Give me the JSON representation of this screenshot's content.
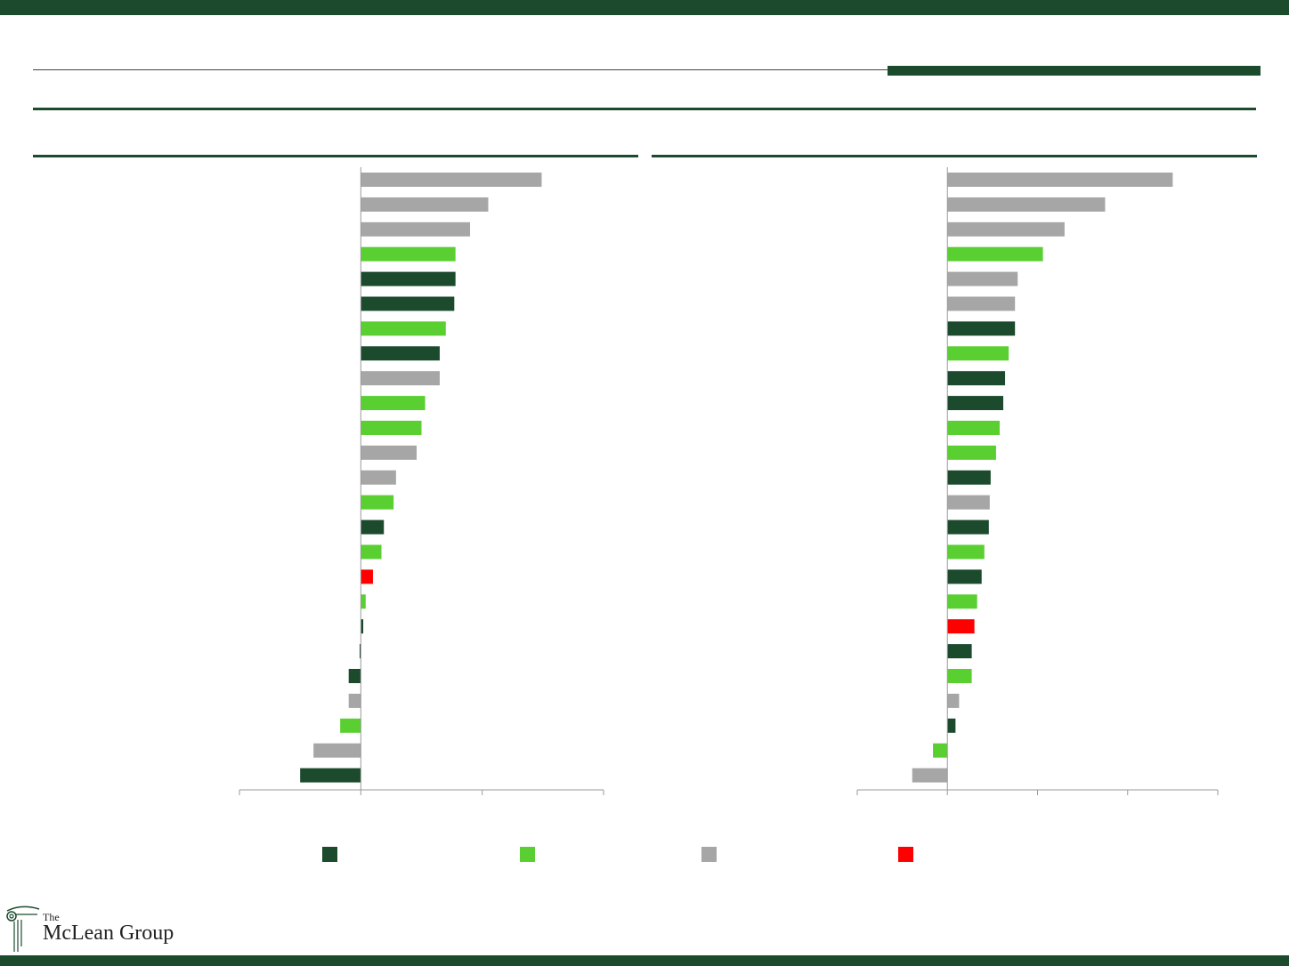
{
  "colors": {
    "brand_dark_green": "#1b4a2c",
    "bright_green": "#59cf31",
    "gray": "#a6a6a6",
    "red": "#ff0000"
  },
  "logo": {
    "the": "The",
    "name": "McLean Group"
  },
  "legend": [
    {
      "color_key": "dark_green",
      "color": "#1b4a2c"
    },
    {
      "color_key": "bright_green",
      "color": "#59cf31"
    },
    {
      "color_key": "gray",
      "color": "#a6a6a6"
    },
    {
      "color_key": "red",
      "color": "#ff0000"
    }
  ],
  "chart_data": [
    {
      "type": "bar",
      "orientation": "horizontal",
      "xlim": [
        -1,
        2
      ],
      "tick_values": [
        -1,
        0,
        1,
        2
      ],
      "grid": false,
      "bars": [
        {
          "value": 1.49,
          "color": "gray"
        },
        {
          "value": 1.05,
          "color": "gray"
        },
        {
          "value": 0.9,
          "color": "gray"
        },
        {
          "value": 0.78,
          "color": "bright_green"
        },
        {
          "value": 0.78,
          "color": "dark_green"
        },
        {
          "value": 0.77,
          "color": "dark_green"
        },
        {
          "value": 0.7,
          "color": "bright_green"
        },
        {
          "value": 0.65,
          "color": "dark_green"
        },
        {
          "value": 0.65,
          "color": "gray"
        },
        {
          "value": 0.53,
          "color": "bright_green"
        },
        {
          "value": 0.5,
          "color": "bright_green"
        },
        {
          "value": 0.46,
          "color": "gray"
        },
        {
          "value": 0.29,
          "color": "gray"
        },
        {
          "value": 0.27,
          "color": "bright_green"
        },
        {
          "value": 0.19,
          "color": "dark_green"
        },
        {
          "value": 0.17,
          "color": "bright_green"
        },
        {
          "value": 0.1,
          "color": "red"
        },
        {
          "value": 0.04,
          "color": "bright_green"
        },
        {
          "value": 0.02,
          "color": "dark_green"
        },
        {
          "value": -0.01,
          "color": "dark_green"
        },
        {
          "value": -0.1,
          "color": "dark_green"
        },
        {
          "value": -0.1,
          "color": "gray"
        },
        {
          "value": -0.17,
          "color": "bright_green"
        },
        {
          "value": -0.39,
          "color": "gray"
        },
        {
          "value": -0.5,
          "color": "dark_green"
        }
      ]
    },
    {
      "type": "bar",
      "orientation": "horizontal",
      "xlim": [
        -1,
        3
      ],
      "tick_values": [
        -1,
        0,
        1,
        2,
        3
      ],
      "grid": false,
      "bars": [
        {
          "value": 2.5,
          "color": "gray"
        },
        {
          "value": 1.75,
          "color": "gray"
        },
        {
          "value": 1.3,
          "color": "gray"
        },
        {
          "value": 1.06,
          "color": "bright_green"
        },
        {
          "value": 0.78,
          "color": "gray"
        },
        {
          "value": 0.75,
          "color": "gray"
        },
        {
          "value": 0.75,
          "color": "dark_green"
        },
        {
          "value": 0.68,
          "color": "bright_green"
        },
        {
          "value": 0.64,
          "color": "dark_green"
        },
        {
          "value": 0.62,
          "color": "dark_green"
        },
        {
          "value": 0.58,
          "color": "bright_green"
        },
        {
          "value": 0.54,
          "color": "bright_green"
        },
        {
          "value": 0.48,
          "color": "dark_green"
        },
        {
          "value": 0.47,
          "color": "gray"
        },
        {
          "value": 0.46,
          "color": "dark_green"
        },
        {
          "value": 0.41,
          "color": "bright_green"
        },
        {
          "value": 0.38,
          "color": "dark_green"
        },
        {
          "value": 0.33,
          "color": "bright_green"
        },
        {
          "value": 0.3,
          "color": "red"
        },
        {
          "value": 0.27,
          "color": "dark_green"
        },
        {
          "value": 0.27,
          "color": "bright_green"
        },
        {
          "value": 0.13,
          "color": "gray"
        },
        {
          "value": 0.09,
          "color": "dark_green"
        },
        {
          "value": -0.16,
          "color": "bright_green"
        },
        {
          "value": -0.39,
          "color": "gray"
        }
      ]
    }
  ]
}
